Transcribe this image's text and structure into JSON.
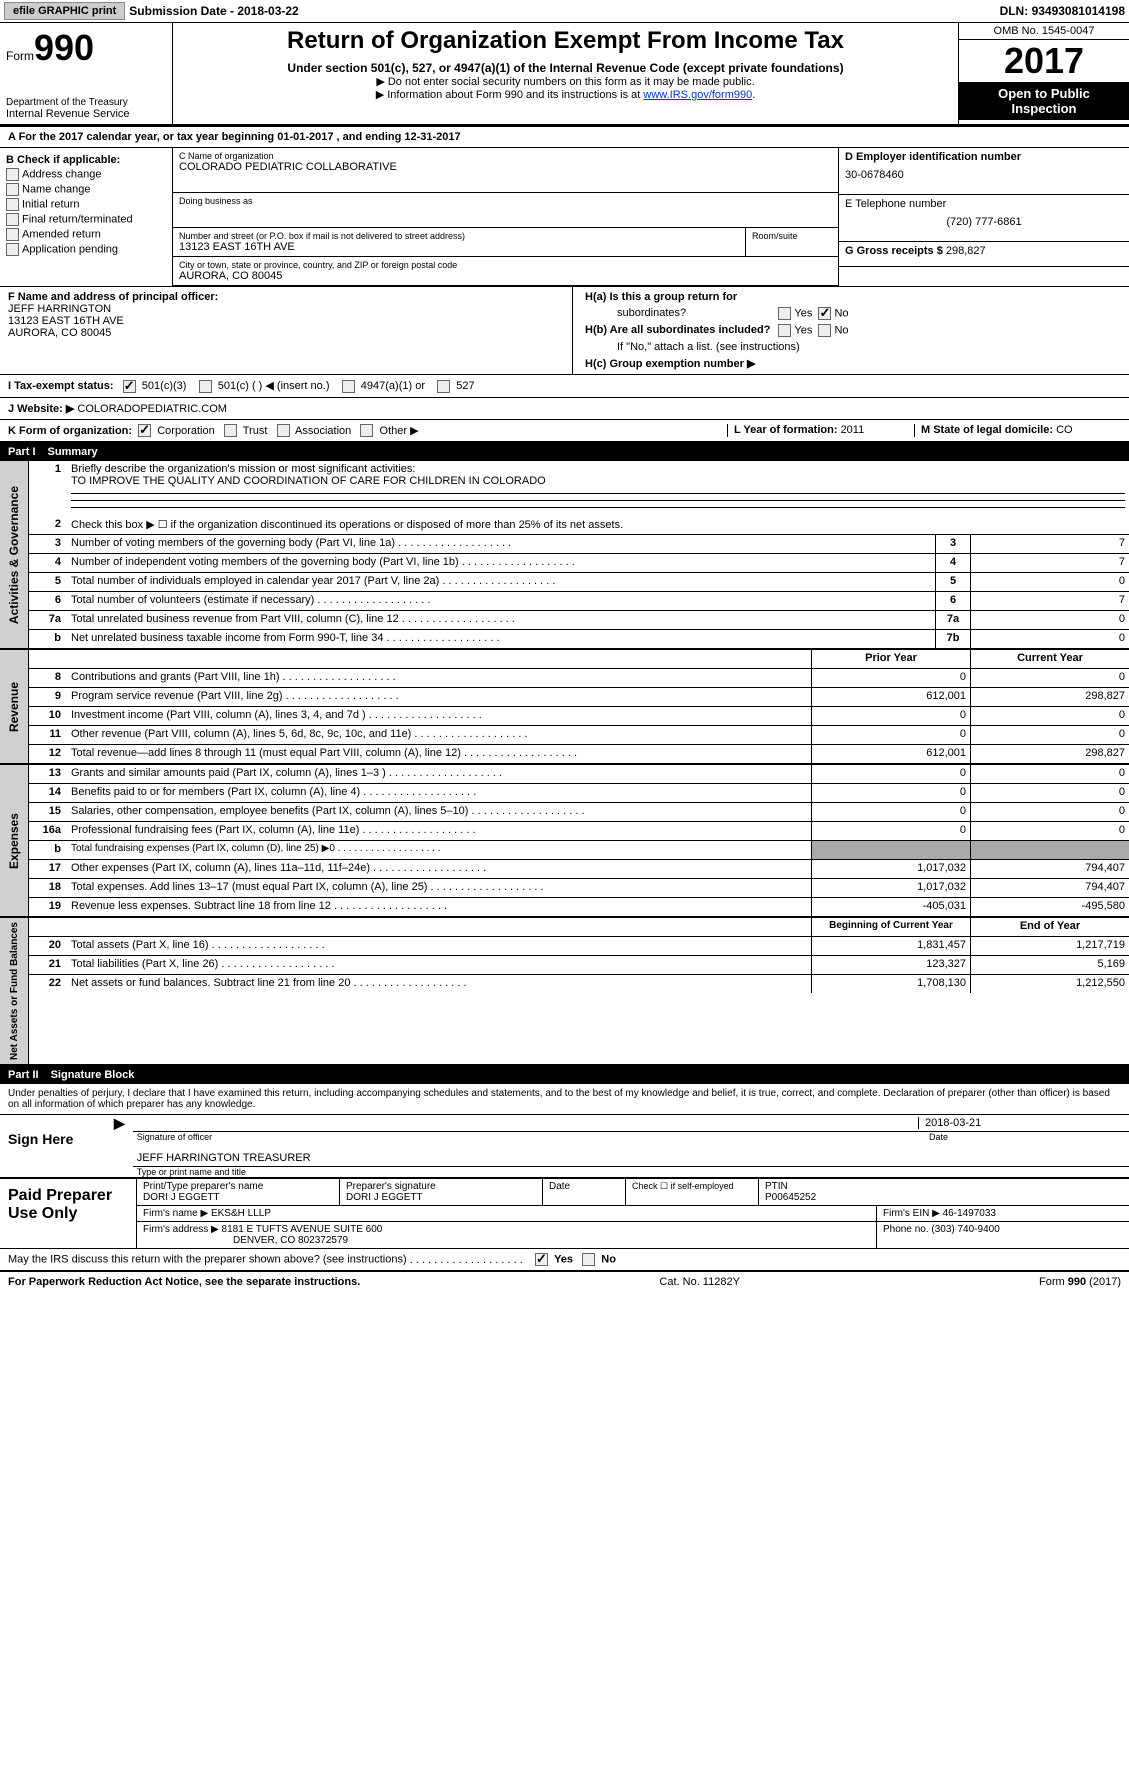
{
  "topbar": {
    "efile": "efile GRAPHIC print",
    "submission_label": "Submission Date - ",
    "submission_date": "2018-03-22",
    "dln_label": "DLN: ",
    "dln": "93493081014198"
  },
  "header": {
    "form_word": "Form",
    "form_number": "990",
    "dept1": "Department of the Treasury",
    "dept2": "Internal Revenue Service",
    "title": "Return of Organization Exempt From Income Tax",
    "subtitle": "Under section 501(c), 527, or 4947(a)(1) of the Internal Revenue Code (except private foundations)",
    "note1": "▶ Do not enter social security numbers on this form as it may be made public.",
    "note2_pre": "▶ Information about Form 990 and its instructions is at ",
    "note2_link": "www.IRS.gov/form990",
    "omb": "OMB No. 1545-0047",
    "year": "2017",
    "inspect1": "Open to Public",
    "inspect2": "Inspection"
  },
  "sectionA": {
    "text_pre": "A   For the 2017 calendar year, or tax year beginning ",
    "begin": "01-01-2017",
    "text_mid": "   , and ending ",
    "end": "12-31-2017"
  },
  "colB": {
    "header": "B Check if applicable:",
    "opts": [
      "Address change",
      "Name change",
      "Initial return",
      "Final return/terminated",
      "Amended return",
      "Application pending"
    ]
  },
  "colC": {
    "name_label": "C Name of organization",
    "name": "COLORADO PEDIATRIC COLLABORATIVE",
    "dba_label": "Doing business as",
    "dba": "",
    "street_label": "Number and street (or P.O. box if mail is not delivered to street address)",
    "street": "13123 EAST 16TH AVE",
    "room_label": "Room/suite",
    "room": "",
    "city_label": "City or town, state or province, country, and ZIP or foreign postal code",
    "city": "AURORA, CO  80045"
  },
  "colD": {
    "ein_label": "D Employer identification number",
    "ein": "30-0678460",
    "phone_label": "E Telephone number",
    "phone": "(720) 777-6861",
    "gross_label": "G Gross receipts $ ",
    "gross": "298,827"
  },
  "rowF": {
    "label": "F  Name and address of principal officer:",
    "name": "JEFF HARRINGTON",
    "addr1": "13123 EAST 16TH AVE",
    "addr2": "AURORA, CO  80045"
  },
  "rowH": {
    "ha1": "H(a)  Is this a group return for",
    "ha2": "subordinates?",
    "hb1": "H(b)  Are all subordinates included?",
    "hb2": "If \"No,\" attach a list. (see instructions)",
    "hc": "H(c)  Group exemption number ▶",
    "yes": "Yes",
    "no": "No"
  },
  "rowI": {
    "label": "I   Tax-exempt status:",
    "o1": "501(c)(3)",
    "o2": "501(c) (   ) ◀ (insert no.)",
    "o3": "4947(a)(1) or",
    "o4": "527"
  },
  "rowJ": {
    "label": "J   Website: ▶ ",
    "value": "COLORADOPEDIATRIC.COM"
  },
  "rowK": {
    "label": "K Form of organization:",
    "o1": "Corporation",
    "o2": "Trust",
    "o3": "Association",
    "o4": "Other ▶",
    "l_label": "L Year of formation: ",
    "l_val": "2011",
    "m_label": "M State of legal domicile: ",
    "m_val": "CO"
  },
  "part1": {
    "num": "Part I",
    "title": "Summary"
  },
  "governance": {
    "label": "Activities & Governance",
    "l1_num": "1",
    "l1": "Briefly describe the organization's mission or most significant activities:",
    "l1_val": "TO IMPROVE THE QUALITY AND COORDINATION OF CARE FOR CHILDREN IN COLORADO",
    "l2_num": "2",
    "l2": "Check this box ▶ ☐  if the organization discontinued its operations or disposed of more than 25% of its net assets.",
    "l3_num": "3",
    "l3": "Number of voting members of the governing body (Part VI, line 1a)",
    "l3_cell": "3",
    "l3_val": "7",
    "l4_num": "4",
    "l4": "Number of independent voting members of the governing body (Part VI, line 1b)",
    "l4_cell": "4",
    "l4_val": "7",
    "l5_num": "5",
    "l5": "Total number of individuals employed in calendar year 2017 (Part V, line 2a)",
    "l5_cell": "5",
    "l5_val": "0",
    "l6_num": "6",
    "l6": "Total number of volunteers (estimate if necessary)",
    "l6_cell": "6",
    "l6_val": "7",
    "l7a_num": "7a",
    "l7a": "Total unrelated business revenue from Part VIII, column (C), line 12",
    "l7a_cell": "7a",
    "l7a_val": "0",
    "l7b_num": "b",
    "l7b": "Net unrelated business taxable income from Form 990-T, line 34",
    "l7b_cell": "7b",
    "l7b_val": "0"
  },
  "revenue": {
    "label": "Revenue",
    "hdr_prior": "Prior Year",
    "hdr_curr": "Current Year",
    "rows": [
      {
        "n": "8",
        "t": "Contributions and grants (Part VIII, line 1h)",
        "p": "0",
        "c": "0"
      },
      {
        "n": "9",
        "t": "Program service revenue (Part VIII, line 2g)",
        "p": "612,001",
        "c": "298,827"
      },
      {
        "n": "10",
        "t": "Investment income (Part VIII, column (A), lines 3, 4, and 7d )",
        "p": "0",
        "c": "0"
      },
      {
        "n": "11",
        "t": "Other revenue (Part VIII, column (A), lines 5, 6d, 8c, 9c, 10c, and 11e)",
        "p": "0",
        "c": "0"
      },
      {
        "n": "12",
        "t": "Total revenue—add lines 8 through 11 (must equal Part VIII, column (A), line 12)",
        "p": "612,001",
        "c": "298,827"
      }
    ]
  },
  "expenses": {
    "label": "Expenses",
    "rows": [
      {
        "n": "13",
        "t": "Grants and similar amounts paid (Part IX, column (A), lines 1–3 )",
        "p": "0",
        "c": "0"
      },
      {
        "n": "14",
        "t": "Benefits paid to or for members (Part IX, column (A), line 4)",
        "p": "0",
        "c": "0"
      },
      {
        "n": "15",
        "t": "Salaries, other compensation, employee benefits (Part IX, column (A), lines 5–10)",
        "p": "0",
        "c": "0"
      },
      {
        "n": "16a",
        "t": "Professional fundraising fees (Part IX, column (A), line 11e)",
        "p": "0",
        "c": "0"
      },
      {
        "n": "b",
        "t": "Total fundraising expenses (Part IX, column (D), line 25) ▶0",
        "p": "",
        "c": "",
        "shaded": true
      },
      {
        "n": "17",
        "t": "Other expenses (Part IX, column (A), lines 11a–11d, 11f–24e)",
        "p": "1,017,032",
        "c": "794,407"
      },
      {
        "n": "18",
        "t": "Total expenses. Add lines 13–17 (must equal Part IX, column (A), line 25)",
        "p": "1,017,032",
        "c": "794,407"
      },
      {
        "n": "19",
        "t": "Revenue less expenses. Subtract line 18 from line 12",
        "p": "-405,031",
        "c": "-495,580"
      }
    ]
  },
  "netassets": {
    "label": "Net Assets or Fund Balances",
    "hdr_begin": "Beginning of Current Year",
    "hdr_end": "End of Year",
    "rows": [
      {
        "n": "20",
        "t": "Total assets (Part X, line 16)",
        "p": "1,831,457",
        "c": "1,217,719"
      },
      {
        "n": "21",
        "t": "Total liabilities (Part X, line 26)",
        "p": "123,327",
        "c": "5,169"
      },
      {
        "n": "22",
        "t": "Net assets or fund balances. Subtract line 21 from line 20",
        "p": "1,708,130",
        "c": "1,212,550"
      }
    ]
  },
  "part2": {
    "num": "Part II",
    "title": "Signature Block"
  },
  "sig": {
    "perjury": "Under penalties of perjury, I declare that I have examined this return, including accompanying schedules and statements, and to the best of my knowledge and belief, it is true, correct, and complete. Declaration of preparer (other than officer) is based on all information of which preparer has any knowledge.",
    "sign_here": "Sign Here",
    "sig_officer": "Signature of officer",
    "date_label": "Date",
    "date": "2018-03-21",
    "name_title": "JEFF HARRINGTON  TREASURER",
    "type_name": "Type or print name and title"
  },
  "prep": {
    "label": "Paid Preparer Use Only",
    "print_label": "Print/Type preparer's name",
    "print_val": "DORI J EGGETT",
    "psig_label": "Preparer's signature",
    "psig_val": "DORI J EGGETT",
    "pdate_label": "Date",
    "pdate_val": "",
    "check_label": "Check ☐ if self-employed",
    "ptin_label": "PTIN",
    "ptin_val": "P00645252",
    "firm_name_label": "Firm's name    ▶ ",
    "firm_name": "EKS&H LLLP",
    "firm_ein_label": "Firm's EIN ▶ ",
    "firm_ein": "46-1497033",
    "firm_addr_label": "Firm's address ▶ ",
    "firm_addr1": "8181 E TUFTS AVENUE SUITE 600",
    "firm_addr2": "DENVER, CO  802372579",
    "phone_label": "Phone no. ",
    "phone": "(303) 740-9400"
  },
  "discuss": {
    "text": "May the IRS discuss this return with the preparer shown above? (see instructions)",
    "yes": "Yes",
    "no": "No"
  },
  "footer": {
    "left": "For Paperwork Reduction Act Notice, see the separate instructions.",
    "mid": "Cat. No. 11282Y",
    "right": "Form 990 (2017)"
  }
}
